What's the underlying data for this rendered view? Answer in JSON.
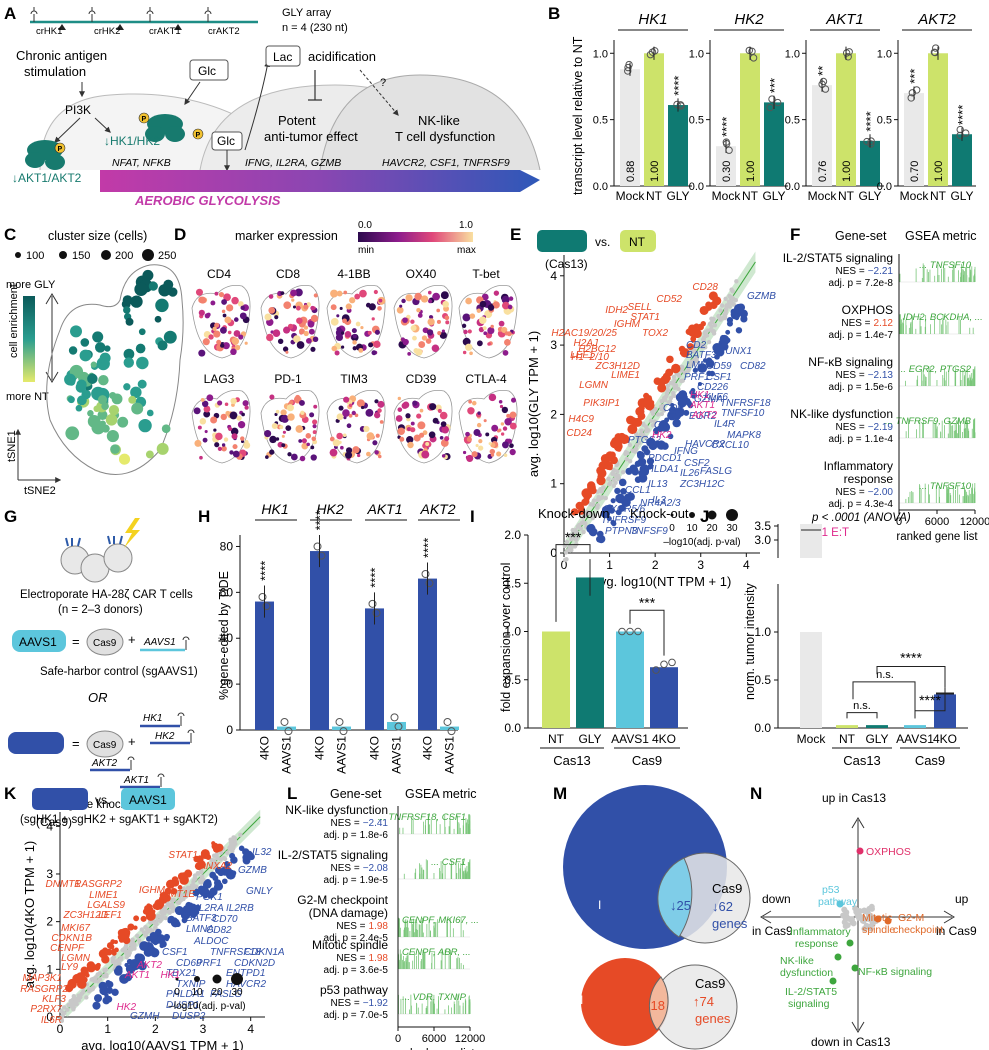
{
  "panels": {
    "A": "A",
    "B": "B",
    "C": "C",
    "D": "D",
    "E": "E",
    "F": "F",
    "G": "G",
    "H": "H",
    "I": "I",
    "J": "J",
    "K": "K",
    "L": "L",
    "M": "M",
    "N": "N"
  },
  "panelA": {
    "array_title": "GLY array",
    "array_n": "n = 4  (230 nt)",
    "crrnas": [
      "crHK1",
      "crHK2",
      "crAKT1",
      "crAKT2"
    ],
    "chronic": "Chronic antigen",
    "stimulation": "stimulation",
    "pi3k": "PI3K",
    "glc_box": "Glc",
    "lac_box": "Lac",
    "acidification": "acidification",
    "question": "?",
    "hk": "↓HK1/HK2",
    "akt": "↓AKT1/AKT2",
    "glc_small": "Glc",
    "potent1": "Potent",
    "potent2": "anti-tumor effect",
    "nk1": "NK-like",
    "nk2": "T cell dysfunction",
    "genes1": "NFAT, NFKB",
    "genes2": "IFNG, IL2RA, GZMB",
    "genes3": "HAVCR2, CSF1, TNFRSF9",
    "aerobic": "AEROBIC GLYCOLYSIS",
    "p": "P"
  },
  "panelB": {
    "ylabel": "transcript level relative to NT",
    "categories": [
      "Mock",
      "NT",
      "GLY"
    ],
    "charts": [
      {
        "title": "HK1",
        "values": [
          0.88,
          1.0,
          0.61
        ],
        "labels": [
          "0.88",
          "1.00",
          ""
        ],
        "stars": [
          "",
          "",
          "****"
        ]
      },
      {
        "title": "HK2",
        "values": [
          0.3,
          1.0,
          0.63
        ],
        "labels": [
          "0.30",
          "1.00",
          ""
        ],
        "stars": [
          "****",
          "",
          "***"
        ]
      },
      {
        "title": "AKT1",
        "values": [
          0.76,
          1.0,
          0.34
        ],
        "labels": [
          "0.76",
          "1.00",
          ""
        ],
        "stars": [
          "**",
          "",
          "****"
        ]
      },
      {
        "title": "AKT2",
        "values": [
          0.7,
          1.0,
          0.39
        ],
        "labels": [
          "0.70",
          "1.00",
          ""
        ],
        "stars": [
          "***",
          "",
          "****"
        ]
      }
    ],
    "yticks": [
      "0.0",
      "0.5",
      "1.0"
    ]
  },
  "panelC": {
    "size_title": "cluster size (cells)",
    "sizes": [
      "100",
      "150",
      "200",
      "250"
    ],
    "more_gly": "more GLY",
    "more_nt": "more NT",
    "enrich": "cell enrichment",
    "tsne1": "tSNE1",
    "tsne2": "tSNE2"
  },
  "panelD": {
    "title": "marker expression",
    "scale_min_val": "0.0",
    "scale_max_val": "1.0",
    "scale_min": "min",
    "scale_max": "max",
    "markers": [
      "CD4",
      "CD8",
      "4-1BB",
      "OX40",
      "T-bet",
      "LAG3",
      "PD-1",
      "TIM3",
      "CD39",
      "CTLA-4"
    ]
  },
  "panelE": {
    "vs": "vs.",
    "nt": "NT",
    "cas": "(Cas13)",
    "xlabel": "avg. log10(NT TPM + 1)",
    "ylabel": "avg. log10(GLY TPM + 1)",
    "ticks": [
      "0",
      "1",
      "2",
      "3",
      "4"
    ],
    "size_legend": [
      "0",
      "10",
      "20",
      "30"
    ],
    "size_caption": "–log10(adj. p-val)",
    "up_genes": [
      "CD28",
      "CD52",
      "SELL",
      "IDH2",
      "STAT1",
      "IGHM",
      "TOX2",
      "H2AC19/20/25",
      "H2BC12",
      "H2AJ",
      "LEF1",
      "H1–2/10",
      "ZC3H12D",
      "LIME1",
      "LGMN",
      "PIK3IP1",
      "H4C9",
      "CD24"
    ],
    "down_genes": [
      "GZMB",
      "CD2",
      "BATF3",
      "RUNX1",
      "LMNA",
      "CD59",
      "CSF1",
      "PRF1",
      "CD226",
      "GZMA",
      "CD82",
      "CD9",
      "KLF6",
      "TNFRSF18",
      "EGR2",
      "TNFSF10",
      "GK",
      "HAVCR2",
      "IL4R",
      "MAPK8",
      "PTGS2",
      "CXCL10",
      "PDCD1",
      "IFNG",
      "PHLDA1",
      "CSF2",
      "IL13",
      "IL26",
      "FASLG",
      "CCL1",
      "IL3",
      "ZC3H12C",
      "NR4A2/3",
      "CXCR5/6",
      "TNFRSF9",
      "PTPN3",
      "TNFSF9"
    ],
    "pink_genes": [
      "HK1",
      "AKT1",
      "AKT2",
      "HK2"
    ]
  },
  "panelF": {
    "col1": "Gene-set",
    "col2": "GSEA metric",
    "sets": [
      {
        "name": [
          "IL-2/STAT5 signaling"
        ],
        "nes": "−2.21",
        "p": "7.2e-8",
        "genes": "... TNFSF10",
        "up": false
      },
      {
        "name": [
          "OXPHOS"
        ],
        "nes": "2.12",
        "p": "1.4e-7",
        "genes": "IDH2, BCKDHA, ...",
        "up": true
      },
      {
        "name": [
          "NF-κB signaling"
        ],
        "nes": "−2.13",
        "p": "1.5e-6",
        "genes": "... EGR2, PTGS2",
        "up": false
      },
      {
        "name": [
          "NK-like dysfunction"
        ],
        "nes": "−2.19",
        "p": "1.1e-4",
        "genes": "... TNFRSF9, GZMB",
        "up": false
      },
      {
        "name": [
          "Inflammatory",
          "response"
        ],
        "nes": "−2.00",
        "p": "4.3e-4",
        "genes": "... TNFSF10",
        "up": false
      }
    ],
    "nes_label": "NES =",
    "p_label": "adj. p =",
    "xticks": [
      "0",
      "6000",
      "12000"
    ],
    "xlabel": "ranked gene list"
  },
  "panelG": {
    "electroporate": "Electroporate HA-28ζ CAR T cells",
    "donors": "(n = 2–3 donors)",
    "aavs1": "AAVS1",
    "eq": "=",
    "cas9": "Cas9",
    "plus": "+",
    "sg_aavs1": "AAVS1",
    "safe": "Safe-harbor control (sgAAVS1)",
    "or": "OR",
    "hk1": "HK1",
    "hk2": "HK2",
    "akt2": "AKT2",
    "akt1": "AKT1",
    "ko": "4 gene knock-out",
    "ko_sg": "(sgHK1 + sgHK2 + sgAKT1 + sgAKT2)"
  },
  "panelH": {
    "ylabel": "% gene-edited by TIDE",
    "genes": [
      "HK1",
      "HK2",
      "AKT1",
      "AKT2"
    ],
    "values": [
      [
        56,
        1.5
      ],
      [
        78,
        1.5
      ],
      [
        53,
        3.5
      ],
      [
        66,
        1.5
      ]
    ],
    "cat": [
      "4KO",
      "AAVS1"
    ],
    "stars": "****",
    "yticks": [
      "0",
      "20",
      "40",
      "60",
      "80"
    ]
  },
  "panelI": {
    "kd": "Knock-down",
    "ko": "Knock-out",
    "ylabel": "fold expansion over control",
    "categories": [
      "NT",
      "GLY",
      "AAVS1",
      "4KO"
    ],
    "values": [
      1.0,
      1.56,
      1.0,
      0.63
    ],
    "groups": [
      "Cas13",
      "Cas9"
    ],
    "stars": [
      "***",
      "***"
    ],
    "yticks": [
      "0.0",
      "0.5",
      "1.0",
      "1.5",
      "2.0"
    ]
  },
  "panelJ": {
    "ylabel": "norm. tumor intensity",
    "anova": "p < .0001 (ANOVA)",
    "et": "1:1 E:T",
    "categories": [
      "Mock",
      "NT",
      "GLY",
      "AAVS1",
      "4KO"
    ],
    "values": [
      1.0,
      0.03,
      0.03,
      0.03,
      0.35
    ],
    "groups": [
      "Cas13",
      "Cas9"
    ],
    "ns": "n.s.",
    "stars": "****",
    "yticks": [
      "0.0",
      "0.5",
      "1.0",
      "3.0",
      "3.5"
    ]
  },
  "panelK": {
    "vs": "vs.",
    "aavs1": "AAVS1",
    "cas": "(Cas9)",
    "xlabel": "avg. log10(AAVS1 TPM + 1)",
    "ylabel": "avg. log10(4KO TPM + 1)",
    "ticks": [
      "0",
      "1",
      "2",
      "3",
      "4"
    ],
    "size_legend": [
      "0",
      "10",
      "20",
      "30"
    ],
    "size_caption": "–log10(adj. p-val)",
    "up_genes": [
      "STAT1",
      "ANXA2",
      "DNMT1",
      "RASGRP2",
      "IGHM",
      "MT1E",
      "LIME1",
      "LGALS9",
      "ZC3H12D",
      "LEF1",
      "MKI67",
      "CDKN1B",
      "CENPF",
      "LGMN",
      "LY9",
      "MAP3K1",
      "RASGRP2",
      "KLF3",
      "P2RX7",
      "IL6R"
    ],
    "down_genes": [
      "IL32",
      "GZMB",
      "GNLY",
      "PGK1",
      "IL2RA",
      "IL2RB",
      "BATF3",
      "CD70",
      "LMNA",
      "CD82",
      "ALDOC",
      "CSF1",
      "TNFRSF18",
      "CDKN1A",
      "CD69",
      "PRF1",
      "CDKN2D",
      "TBX21",
      "ENTPD1",
      "TXNIP",
      "HAVCR2",
      "PHLDA1",
      "FASLG",
      "DUSP1",
      "GZMH",
      "DUSP2"
    ],
    "pink_genes": [
      "AKT2",
      "AKT1",
      "HK1",
      "HK2"
    ]
  },
  "panelL": {
    "col1": "Gene-set",
    "col2": "GSEA metric",
    "sets": [
      {
        "name": [
          "NK-like dysfunction"
        ],
        "nes": "−2.41",
        "p": "1.8e-6",
        "genes": "... TNFRSF18, CSF1",
        "up": false
      },
      {
        "name": [
          "IL-2/STAT5 signaling"
        ],
        "nes": "−2.08",
        "p": "1.9e-5",
        "genes": "... CSF1",
        "up": false
      },
      {
        "name": [
          "G2-M checkpoint",
          "(DNA damage)"
        ],
        "nes": "1.98",
        "p": "2.4e-5",
        "genes": "CENPF, MKI67, ...",
        "up": true
      },
      {
        "name": [
          "Mitotic spindle"
        ],
        "nes": "1.98",
        "p": "3.6e-5",
        "genes": "CENPF, ABR, ...",
        "up": true
      },
      {
        "name": [
          "p53 pathway"
        ],
        "nes": "−1.92",
        "p": "7.0e-5",
        "genes": "... VDR, TXNIP",
        "up": false
      }
    ],
    "nes_label": "NES =",
    "p_label": "adj. p =",
    "xticks": [
      "0",
      "6000",
      "12000"
    ],
    "xlabel": "ranked gene list"
  },
  "panelM": {
    "left_label": "I",
    "down_overlap": "↓25",
    "cas9": "Cas9",
    "down_only": "↓62",
    "genes": "genes",
    "up_overlap": "↑18",
    "up_only": "↑74"
  },
  "panelN": {
    "up13": "up in Cas13",
    "down13": "down in Cas13",
    "down9a": "down",
    "down9b": "in Cas9",
    "up9a": "up",
    "up9b": "in Cas9",
    "points": [
      "OXPHOS",
      "p53",
      "pathway",
      "Mitotic",
      "spindle",
      "G2-M",
      "checkpoint",
      "Inflammatory",
      "response",
      "NK-like",
      "dysfunction",
      "NF-κB signaling",
      "IL-2/STAT5",
      "signaling"
    ]
  },
  "colors": {
    "teal": "#0f7a72",
    "lime": "#cde36a",
    "mock": "#e9e9e9",
    "blue": "#3150a8",
    "red": "#e64a26",
    "pink": "#de2a8d",
    "cyan": "#5cc6dc",
    "green": "#3ea63e",
    "orange": "#e06a2a"
  }
}
